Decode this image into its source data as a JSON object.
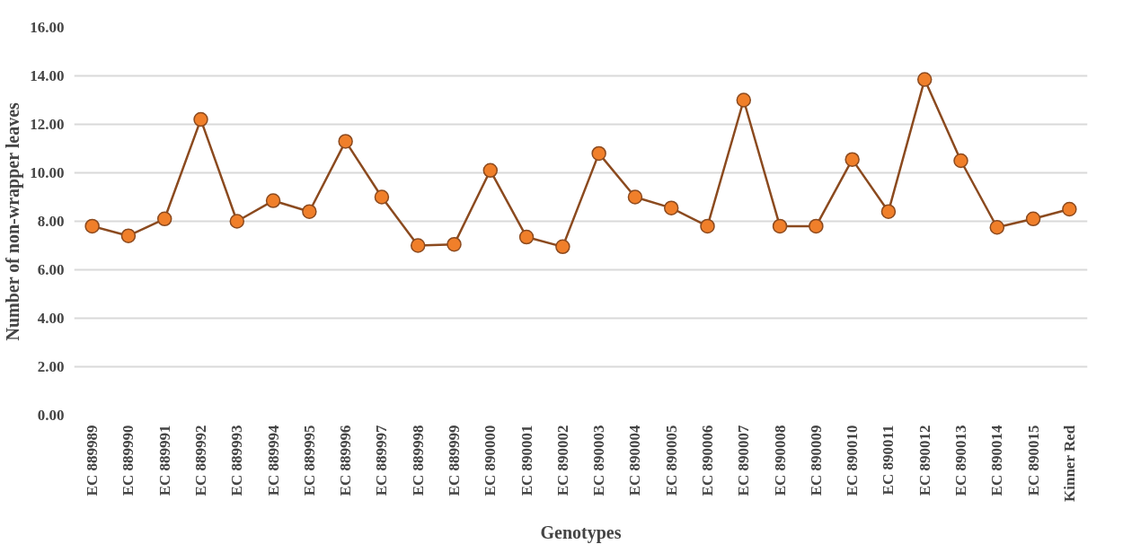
{
  "chart_data": {
    "type": "line",
    "xlabel": "Genotypes",
    "ylabel": "Number of non-wrapper leaves",
    "categories": [
      "EC 889989",
      "EC 889990",
      "EC 889991",
      "EC 889992",
      "EC 889993",
      "EC 889994",
      "EC 889995",
      "EC 889996",
      "EC 889997",
      "EC 889998",
      "EC 889999",
      "EC 890000",
      "EC 890001",
      "EC 890002",
      "EC 890003",
      "EC 890004",
      "EC 890005",
      "EC 890006",
      "EC 890007",
      "EC 890008",
      "EC 890009",
      "EC 890010",
      "EC 890011",
      "EC 890012",
      "EC 890013",
      "EC 890014",
      "EC 890015",
      "Kinner Red"
    ],
    "series": [
      {
        "color": "#8b4a1f",
        "values": [
          7.8,
          7.4,
          8.1,
          12.2,
          8.0,
          8.85,
          8.4,
          11.3,
          9.0,
          7.0,
          7.05,
          10.1,
          7.35,
          6.95,
          10.8,
          9.0,
          8.55,
          7.8,
          13.0,
          7.8,
          7.8,
          10.55,
          8.4,
          13.85,
          10.5,
          7.75,
          8.1,
          8.5
        ]
      }
    ],
    "ylim": [
      0,
      16
    ],
    "yticks": [
      {
        "value": 0,
        "label": "0.00"
      },
      {
        "value": 2,
        "label": "2.00"
      },
      {
        "value": 4,
        "label": "4.00"
      },
      {
        "value": 6,
        "label": "6.00"
      },
      {
        "value": 8,
        "label": "8.00"
      },
      {
        "value": 10,
        "label": "10.00"
      },
      {
        "value": 12,
        "label": "12.00"
      },
      {
        "value": 14,
        "label": "14.00"
      },
      {
        "value": 16,
        "label": "16.00"
      }
    ],
    "grid": "y",
    "marker": "circle",
    "line_style": "solid"
  }
}
